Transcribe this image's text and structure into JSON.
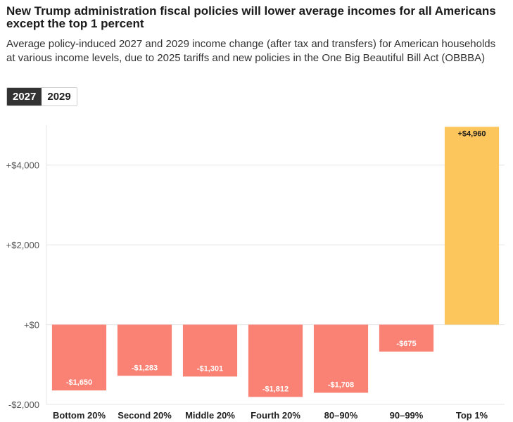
{
  "title": "New Trump administration fiscal policies will lower average incomes for all Americans except the top 1 percent",
  "subtitle": "Average policy-induced 2027 and 2029 income change (after tax and transfers) for American households at various income levels, due to 2025 tariffs and new policies in the One Big Beautiful Bill Act (OBBBA)",
  "tabs": [
    {
      "label": "2027",
      "active": true
    },
    {
      "label": "2029",
      "active": false
    }
  ],
  "colors": {
    "negative": "#f98275",
    "positive": "#fdc65d",
    "grid": "#e6e6e6",
    "axis_text": "#555555"
  },
  "chart_data": {
    "type": "bar",
    "categories": [
      "Bottom 20%",
      "Second 20%",
      "Middle 20%",
      "Fourth 20%",
      "80–90%",
      "90–99%",
      "Top 1%"
    ],
    "values": [
      -1650,
      -1283,
      -1301,
      -1812,
      -1708,
      -675,
      4960
    ],
    "data_labels": [
      "-$1,650",
      "-$1,283",
      "-$1,301",
      "-$1,812",
      "-$1,708",
      "-$675",
      "+$4,960"
    ],
    "y_ticks": [
      -2000,
      0,
      2000,
      4000
    ],
    "y_tick_labels": [
      "-$2,000",
      "+$0",
      "+$2,000",
      "+$4,000"
    ],
    "ylim": [
      -2000,
      5000
    ],
    "grid": true,
    "legend": "none"
  }
}
